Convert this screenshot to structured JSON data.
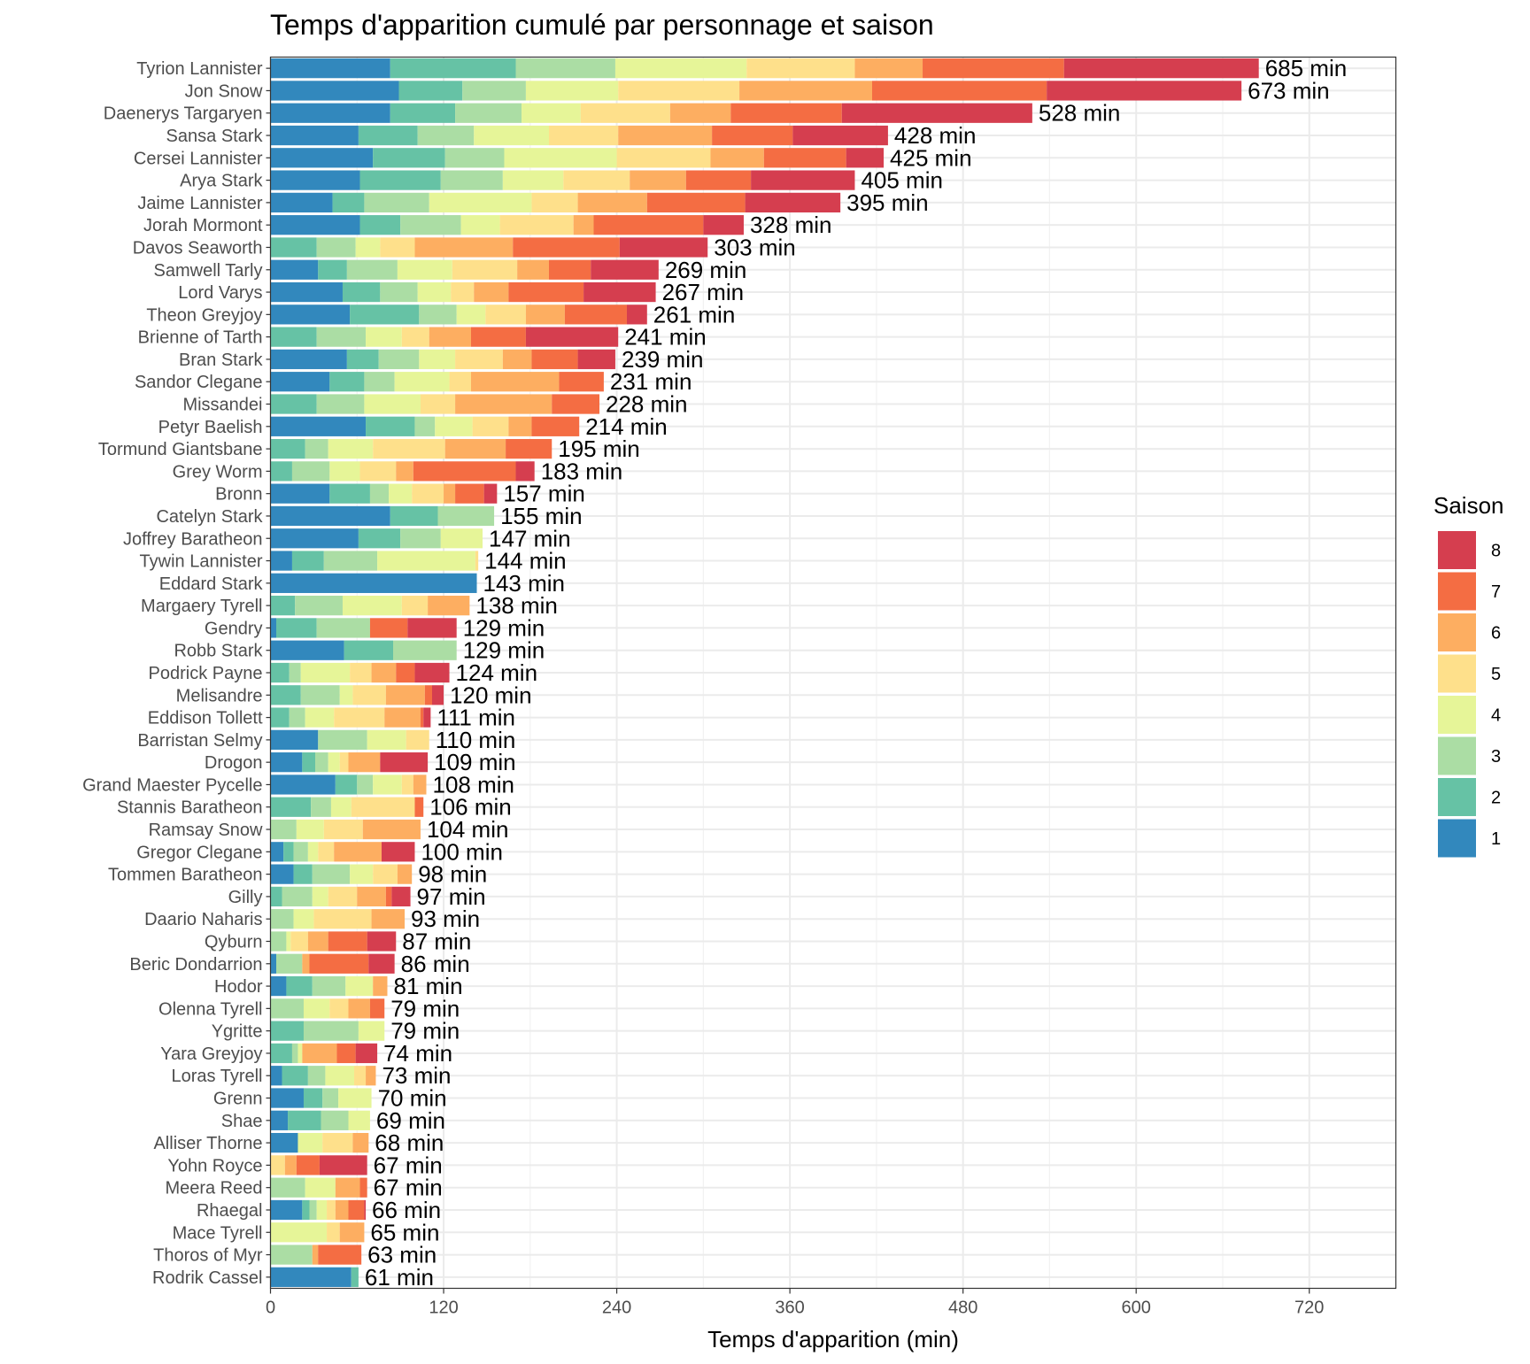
{
  "chart_data": {
    "type": "bar",
    "orientation": "horizontal",
    "stacked": true,
    "title": "Temps d'apparition cumulé par personnage et saison",
    "xlabel": "Temps d'apparition (min)",
    "ylabel": "",
    "xlim": [
      0,
      780
    ],
    "x_ticks": [
      0,
      120,
      240,
      360,
      480,
      600,
      720
    ],
    "grid": true,
    "legend": {
      "title": "Saison",
      "placement": "right"
    },
    "value_label_suffix": " min",
    "seasons": [
      "1",
      "2",
      "3",
      "4",
      "5",
      "6",
      "7",
      "8"
    ],
    "colors": [
      "#3288bd",
      "#66c2a5",
      "#abdda4",
      "#e6f598",
      "#fee08b",
      "#fdae61",
      "#f46d43",
      "#d53e4f"
    ],
    "characters": [
      {
        "name": "Tyrion Lannister",
        "total": 685,
        "seasons": [
          83,
          87,
          69,
          91,
          75,
          47,
          98,
          135
        ]
      },
      {
        "name": "Jon Snow",
        "total": 673,
        "seasons": [
          89,
          44,
          44,
          64,
          84,
          92,
          121,
          135
        ]
      },
      {
        "name": "Daenerys Targaryen",
        "total": 528,
        "seasons": [
          83,
          45,
          46,
          41,
          62,
          42,
          77,
          132
        ]
      },
      {
        "name": "Sansa Stark",
        "total": 428,
        "seasons": [
          61,
          41,
          39,
          52,
          48,
          65,
          56,
          66
        ]
      },
      {
        "name": "Cersei Lannister",
        "total": 425,
        "seasons": [
          71,
          50,
          41,
          78,
          65,
          37,
          57,
          26
        ]
      },
      {
        "name": "Arya Stark",
        "total": 405,
        "seasons": [
          62,
          56,
          43,
          42,
          46,
          39,
          45,
          72
        ]
      },
      {
        "name": "Jaime Lannister",
        "total": 395,
        "seasons": [
          43,
          22,
          45,
          71,
          32,
          48,
          68,
          66
        ]
      },
      {
        "name": "Jorah Mormont",
        "total": 328,
        "seasons": [
          62,
          28,
          42,
          27,
          51,
          14,
          76,
          28
        ]
      },
      {
        "name": "Davos Seaworth",
        "total": 303,
        "seasons": [
          0,
          32,
          27,
          17,
          24,
          68,
          74,
          61
        ]
      },
      {
        "name": "Samwell Tarly",
        "total": 269,
        "seasons": [
          33,
          20,
          35,
          38,
          45,
          22,
          29,
          47
        ]
      },
      {
        "name": "Lord Varys",
        "total": 267,
        "seasons": [
          50,
          26,
          26,
          23,
          16,
          24,
          52,
          50
        ]
      },
      {
        "name": "Theon Greyjoy",
        "total": 261,
        "seasons": [
          55,
          48,
          26,
          20,
          28,
          27,
          43,
          14
        ]
      },
      {
        "name": "Brienne of Tarth",
        "total": 241,
        "seasons": [
          0,
          32,
          34,
          25,
          19,
          29,
          38,
          64
        ]
      },
      {
        "name": "Bran Stark",
        "total": 239,
        "seasons": [
          53,
          22,
          28,
          25,
          33,
          20,
          32,
          26
        ]
      },
      {
        "name": "Sandor Clegane",
        "total": 231,
        "seasons": [
          41,
          24,
          21,
          38,
          15,
          61,
          31,
          0
        ]
      },
      {
        "name": "Missandei",
        "total": 228,
        "seasons": [
          0,
          32,
          33,
          39,
          24,
          67,
          33,
          0
        ]
      },
      {
        "name": "Petyr Baelish",
        "total": 214,
        "seasons": [
          66,
          34,
          14,
          26,
          25,
          16,
          33,
          0
        ]
      },
      {
        "name": "Tormund Giantsbane",
        "total": 195,
        "seasons": [
          0,
          24,
          16,
          31,
          50,
          42,
          32,
          0
        ]
      },
      {
        "name": "Grey Worm",
        "total": 183,
        "seasons": [
          0,
          15,
          26,
          21,
          25,
          12,
          71,
          13
        ]
      },
      {
        "name": "Bronn",
        "total": 157,
        "seasons": [
          41,
          28,
          13,
          16,
          22,
          8,
          20,
          9
        ]
      },
      {
        "name": "Catelyn Stark",
        "total": 155,
        "seasons": [
          83,
          33,
          39,
          0,
          0,
          0,
          0,
          0
        ]
      },
      {
        "name": "Joffrey Baratheon",
        "total": 147,
        "seasons": [
          61,
          29,
          28,
          29,
          0,
          0,
          0,
          0
        ]
      },
      {
        "name": "Tywin Lannister",
        "total": 144,
        "seasons": [
          15,
          22,
          37,
          68,
          2,
          0,
          0,
          0
        ]
      },
      {
        "name": "Eddard Stark",
        "total": 143,
        "seasons": [
          143,
          0,
          0,
          0,
          0,
          0,
          0,
          0
        ]
      },
      {
        "name": "Margaery Tyrell",
        "total": 138,
        "seasons": [
          0,
          17,
          33,
          41,
          18,
          29,
          0,
          0
        ]
      },
      {
        "name": "Gendry",
        "total": 129,
        "seasons": [
          4,
          28,
          37,
          0,
          0,
          0,
          26,
          34
        ]
      },
      {
        "name": "Robb Stark",
        "total": 129,
        "seasons": [
          51,
          34,
          44,
          0,
          0,
          0,
          0,
          0
        ]
      },
      {
        "name": "Podrick Payne",
        "total": 124,
        "seasons": [
          0,
          13,
          8,
          34,
          15,
          17,
          13,
          24
        ]
      },
      {
        "name": "Melisandre",
        "total": 120,
        "seasons": [
          0,
          21,
          27,
          9,
          23,
          27,
          5,
          8
        ]
      },
      {
        "name": "Eddison Tollett",
        "total": 111,
        "seasons": [
          0,
          13,
          11,
          20,
          35,
          25,
          2,
          5
        ]
      },
      {
        "name": "Barristan Selmy",
        "total": 110,
        "seasons": [
          33,
          0,
          34,
          27,
          16,
          0,
          0,
          0
        ]
      },
      {
        "name": "Drogon",
        "total": 109,
        "seasons": [
          22,
          9,
          9,
          8,
          6,
          22,
          0,
          33
        ]
      },
      {
        "name": "Grand Maester Pycelle",
        "total": 108,
        "seasons": [
          45,
          15,
          11,
          20,
          8,
          9,
          0,
          0
        ]
      },
      {
        "name": "Stannis Baratheon",
        "total": 106,
        "seasons": [
          0,
          28,
          14,
          14,
          44,
          0,
          6,
          0
        ]
      },
      {
        "name": "Ramsay Snow",
        "total": 104,
        "seasons": [
          0,
          0,
          18,
          19,
          27,
          40,
          0,
          0
        ]
      },
      {
        "name": "Gregor Clegane",
        "total": 100,
        "seasons": [
          9,
          7,
          10,
          7,
          11,
          33,
          0,
          23
        ]
      },
      {
        "name": "Tommen Baratheon",
        "total": 98,
        "seasons": [
          16,
          13,
          26,
          16,
          17,
          10,
          0,
          0
        ]
      },
      {
        "name": "Gilly",
        "total": 97,
        "seasons": [
          0,
          8,
          21,
          11,
          20,
          20,
          4,
          13
        ]
      },
      {
        "name": "Daario Naharis",
        "total": 93,
        "seasons": [
          0,
          0,
          16,
          14,
          40,
          23,
          0,
          0
        ]
      },
      {
        "name": "Qyburn",
        "total": 87,
        "seasons": [
          0,
          0,
          11,
          3,
          12,
          14,
          27,
          20
        ]
      },
      {
        "name": "Beric Dondarrion",
        "total": 86,
        "seasons": [
          4,
          0,
          18,
          0,
          0,
          5,
          41,
          18
        ]
      },
      {
        "name": "Hodor",
        "total": 81,
        "seasons": [
          11,
          18,
          23,
          19,
          0,
          10,
          0,
          0
        ]
      },
      {
        "name": "Olenna Tyrell",
        "total": 79,
        "seasons": [
          0,
          0,
          23,
          18,
          13,
          15,
          10,
          0
        ]
      },
      {
        "name": "Ygritte",
        "total": 79,
        "seasons": [
          0,
          23,
          38,
          18,
          0,
          0,
          0,
          0
        ]
      },
      {
        "name": "Yara Greyjoy",
        "total": 74,
        "seasons": [
          0,
          15,
          4,
          3,
          0,
          24,
          13,
          15
        ]
      },
      {
        "name": "Loras Tyrell",
        "total": 73,
        "seasons": [
          8,
          18,
          12,
          20,
          8,
          7,
          0,
          0
        ]
      },
      {
        "name": "Grenn",
        "total": 70,
        "seasons": [
          23,
          13,
          11,
          23,
          0,
          0,
          0,
          0
        ]
      },
      {
        "name": "Shae",
        "total": 69,
        "seasons": [
          12,
          23,
          19,
          15,
          0,
          0,
          0,
          0
        ]
      },
      {
        "name": "Alliser Thorne",
        "total": 68,
        "seasons": [
          19,
          0,
          0,
          17,
          21,
          11,
          0,
          0
        ]
      },
      {
        "name": "Yohn Royce",
        "total": 67,
        "seasons": [
          0,
          0,
          0,
          0,
          10,
          8,
          16,
          33
        ]
      },
      {
        "name": "Meera Reed",
        "total": 67,
        "seasons": [
          0,
          0,
          24,
          21,
          0,
          17,
          5,
          0
        ]
      },
      {
        "name": "Rhaegal",
        "total": 66,
        "seasons": [
          22,
          5,
          5,
          7,
          6,
          9,
          11,
          1
        ]
      },
      {
        "name": "Mace Tyrell",
        "total": 65,
        "seasons": [
          0,
          0,
          0,
          39,
          9,
          17,
          0,
          0
        ]
      },
      {
        "name": "Thoros of Myr",
        "total": 63,
        "seasons": [
          0,
          0,
          29,
          0,
          0,
          4,
          30,
          0
        ]
      },
      {
        "name": "Rodrik Cassel",
        "total": 61,
        "seasons": [
          56,
          5,
          0,
          0,
          0,
          0,
          0,
          0
        ]
      }
    ]
  }
}
